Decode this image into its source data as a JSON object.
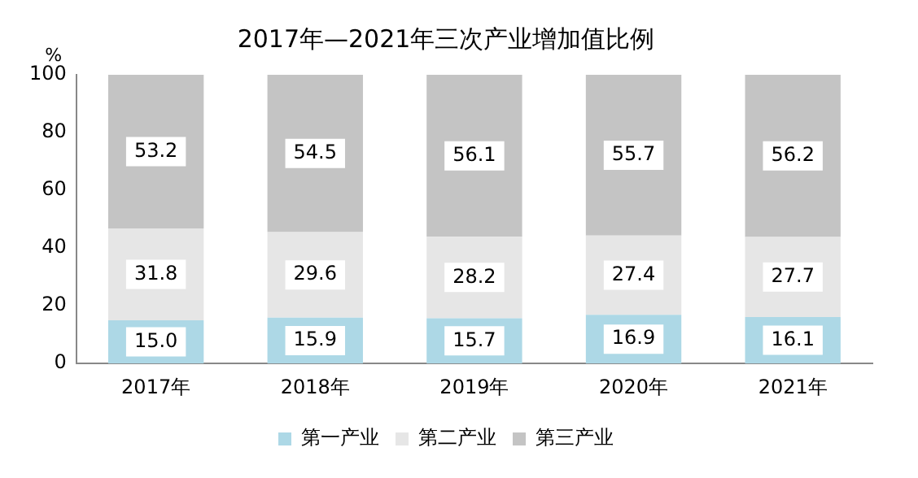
{
  "chart_data": {
    "type": "bar",
    "title": "2017年—2021年三次产业增加值比例",
    "ylabel": "%",
    "categories": [
      "2017年",
      "2018年",
      "2019年",
      "2020年",
      "2021年"
    ],
    "stacked": true,
    "legend": "bottom",
    "grid": false,
    "ylim": [
      0,
      100
    ],
    "yticks": [
      0,
      20,
      40,
      60,
      80,
      100
    ],
    "series": [
      {
        "name": "第一产业",
        "color": "#add8e6",
        "values": [
          15.0,
          15.9,
          15.7,
          16.9,
          16.1
        ],
        "value_labels": [
          "15.0",
          "15.9",
          "15.7",
          "16.9",
          "16.1"
        ]
      },
      {
        "name": "第二产业",
        "color": "#e6e6e6",
        "values": [
          31.8,
          29.6,
          28.2,
          27.4,
          27.7
        ],
        "value_labels": [
          "31.8",
          "29.6",
          "28.2",
          "27.4",
          "27.7"
        ]
      },
      {
        "name": "第三产业",
        "color": "#c4c4c4",
        "values": [
          53.2,
          54.5,
          56.1,
          55.7,
          56.2
        ],
        "value_labels": [
          "53.2",
          "54.5",
          "56.1",
          "55.7",
          "56.2"
        ]
      }
    ]
  }
}
